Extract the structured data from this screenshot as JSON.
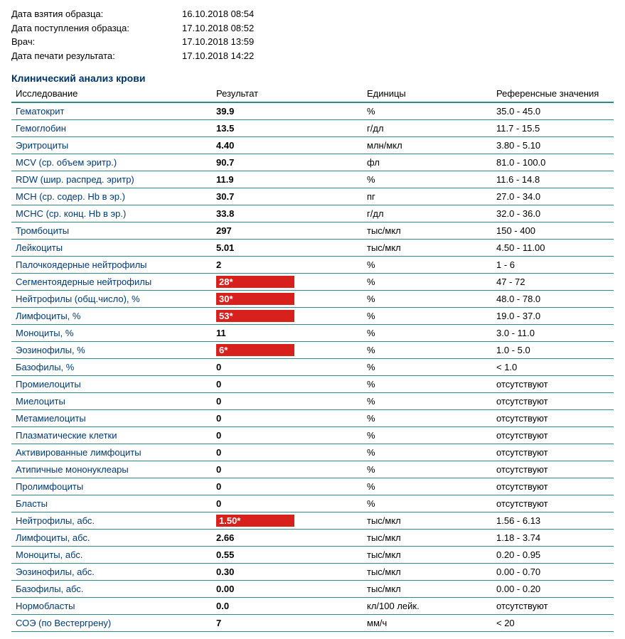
{
  "meta": [
    {
      "label": "Дата взятия образца:",
      "value": "16.10.2018 08:54"
    },
    {
      "label": "Дата поступления образца:",
      "value": "17.10.2018 08:52"
    },
    {
      "label": "Врач:",
      "value": "17.10.2018 13:59"
    },
    {
      "label": "Дата печати результата:",
      "value": "17.10.2018 14:22"
    }
  ],
  "section_title": "Клинический анализ крови",
  "columns": {
    "test": "Исследование",
    "result": "Результат",
    "units": "Единицы",
    "ref": "Референсные значения"
  },
  "rows": [
    {
      "test": "Гематокрит",
      "result": "39.9",
      "units": "%",
      "ref": "35.0 - 45.0",
      "abn": false
    },
    {
      "test": "Гемоглобин",
      "result": "13.5",
      "units": "г/дл",
      "ref": "11.7 - 15.5",
      "abn": false
    },
    {
      "test": "Эритроциты",
      "result": "4.40",
      "units": "млн/мкл",
      "ref": "3.80 - 5.10",
      "abn": false
    },
    {
      "test": "MCV (ср. объем эритр.)",
      "result": "90.7",
      "units": "фл",
      "ref": "81.0 - 100.0",
      "abn": false
    },
    {
      "test": "RDW (шир. распред. эритр)",
      "result": "11.9",
      "units": "%",
      "ref": "11.6 - 14.8",
      "abn": false
    },
    {
      "test": "MCH (ср. содер. Hb в эр.)",
      "result": "30.7",
      "units": "пг",
      "ref": "27.0 - 34.0",
      "abn": false
    },
    {
      "test": "MCHC (ср. конц. Hb в эр.)",
      "result": "33.8",
      "units": "г/дл",
      "ref": "32.0 - 36.0",
      "abn": false
    },
    {
      "test": "Тромбоциты",
      "result": "297",
      "units": "тыс/мкл",
      "ref": "150 - 400",
      "abn": false
    },
    {
      "test": "Лейкоциты",
      "result": "5.01",
      "units": "тыс/мкл",
      "ref": "4.50 - 11.00",
      "abn": false
    },
    {
      "test": "Палочкоядерные нейтрофилы",
      "result": "2",
      "units": "%",
      "ref": "1 - 6",
      "abn": false
    },
    {
      "test": "Сегментоядерные нейтрофилы",
      "result": "28*",
      "units": "%",
      "ref": "47 - 72",
      "abn": true
    },
    {
      "test": "Нейтрофилы (общ.число), %",
      "result": "30*",
      "units": "%",
      "ref": "48.0 - 78.0",
      "abn": true
    },
    {
      "test": "Лимфоциты, %",
      "result": "53*",
      "units": "%",
      "ref": "19.0 - 37.0",
      "abn": true
    },
    {
      "test": "Моноциты, %",
      "result": "11",
      "units": "%",
      "ref": "3.0 - 11.0",
      "abn": false
    },
    {
      "test": "Эозинофилы, %",
      "result": "6*",
      "units": "%",
      "ref": "1.0 - 5.0",
      "abn": true
    },
    {
      "test": "Базофилы, %",
      "result": "0",
      "units": "%",
      "ref": "< 1.0",
      "abn": false
    },
    {
      "test": "Промиелоциты",
      "result": "0",
      "units": "%",
      "ref": "отсутствуют",
      "abn": false
    },
    {
      "test": "Миелоциты",
      "result": "0",
      "units": "%",
      "ref": "отсутствуют",
      "abn": false
    },
    {
      "test": "Метамиелоциты",
      "result": "0",
      "units": "%",
      "ref": "отсутствуют",
      "abn": false
    },
    {
      "test": "Плазматические клетки",
      "result": "0",
      "units": "%",
      "ref": "отсутствуют",
      "abn": false
    },
    {
      "test": "Активированные лимфоциты",
      "result": "0",
      "units": "%",
      "ref": "отсутствуют",
      "abn": false
    },
    {
      "test": "Атипичные мононуклеары",
      "result": "0",
      "units": "%",
      "ref": "отсутствуют",
      "abn": false
    },
    {
      "test": "Пролимфоциты",
      "result": "0",
      "units": "%",
      "ref": "отсутствуют",
      "abn": false
    },
    {
      "test": "Бласты",
      "result": "0",
      "units": "%",
      "ref": "отсутствуют",
      "abn": false
    },
    {
      "test": "Нейтрофилы, абс.",
      "result": "1.50*",
      "units": "тыс/мкл",
      "ref": "1.56 - 6.13",
      "abn": true
    },
    {
      "test": "Лимфоциты, абс.",
      "result": "2.66",
      "units": "тыс/мкл",
      "ref": "1.18 - 3.74",
      "abn": false
    },
    {
      "test": "Моноциты, абс.",
      "result": "0.55",
      "units": "тыс/мкл",
      "ref": "0.20 - 0.95",
      "abn": false
    },
    {
      "test": "Эозинофилы, абс.",
      "result": "0.30",
      "units": "тыс/мкл",
      "ref": "0.00 - 0.70",
      "abn": false
    },
    {
      "test": "Базофилы, абс.",
      "result": "0.00",
      "units": "тыс/мкл",
      "ref": "0.00 - 0.20",
      "abn": false
    },
    {
      "test": "Нормобласты",
      "result": "0.0",
      "units": "кл/100 лейк.",
      "ref": "отсутствуют",
      "abn": false
    },
    {
      "test": "СОЭ (по Вестергрену)",
      "result": "7",
      "units": "мм/ч",
      "ref": "< 20",
      "abn": false
    }
  ],
  "colors": {
    "link_blue": "#003a7a",
    "border": "#2b8a8a",
    "abnormal_bg": "#d8201c"
  }
}
